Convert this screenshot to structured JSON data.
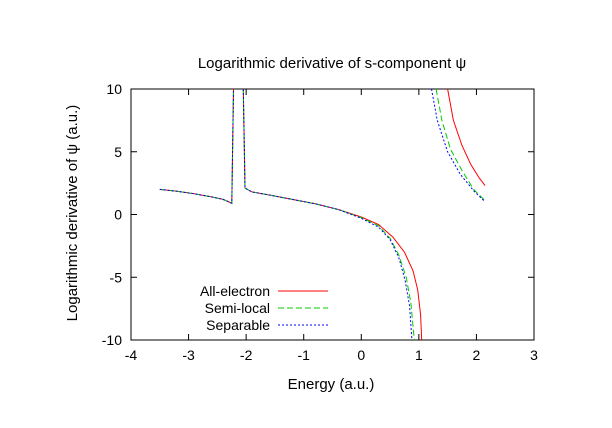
{
  "chart_data": {
    "type": "line",
    "title": "Logarithmic derivative of s-component ψ",
    "xlabel": "Energy (a.u.)",
    "ylabel": "Logarithmic derivative of ψ (a.u.)",
    "xlim": [
      -4,
      3
    ],
    "ylim": [
      -10,
      10
    ],
    "xticks": [
      -4,
      -3,
      -2,
      -1,
      0,
      1,
      2,
      3
    ],
    "yticks": [
      -10,
      -5,
      0,
      5,
      10
    ],
    "xtick_labels": [
      "-4",
      "-3",
      "-2",
      "-1",
      "0",
      "1",
      "2",
      "3"
    ],
    "ytick_labels": [
      "-10",
      "-5",
      "0",
      "5",
      "10"
    ],
    "grid": false,
    "legend_position": "bottom-left",
    "series": [
      {
        "name": "All-electron",
        "color": "#ff0000",
        "dash": "solid",
        "segments": [
          [
            [
              -3.5,
              2.0
            ],
            [
              -3.2,
              1.85
            ],
            [
              -2.9,
              1.65
            ],
            [
              -2.6,
              1.4
            ],
            [
              -2.4,
              1.2
            ],
            [
              -2.25,
              0.9
            ],
            [
              -2.22,
              10
            ]
          ],
          [
            [
              -2.05,
              10
            ],
            [
              -2.02,
              2.1
            ],
            [
              -1.9,
              1.8
            ],
            [
              -1.6,
              1.55
            ],
            [
              -1.2,
              1.2
            ],
            [
              -0.8,
              0.85
            ],
            [
              -0.4,
              0.4
            ],
            [
              0.0,
              -0.2
            ],
            [
              0.3,
              -0.8
            ],
            [
              0.55,
              -1.8
            ],
            [
              0.75,
              -3.0
            ],
            [
              0.9,
              -4.5
            ],
            [
              0.98,
              -6.0
            ],
            [
              1.03,
              -8.0
            ],
            [
              1.05,
              -10
            ]
          ],
          [
            [
              1.5,
              10
            ],
            [
              1.6,
              7.5
            ],
            [
              1.75,
              5.5
            ],
            [
              1.9,
              4.0
            ],
            [
              2.05,
              2.9
            ],
            [
              2.15,
              2.3
            ]
          ]
        ]
      },
      {
        "name": "Semi-local",
        "color": "#00cc00",
        "dash": "6,3",
        "segments": [
          [
            [
              -3.5,
              2.0
            ],
            [
              -3.2,
              1.85
            ],
            [
              -2.9,
              1.65
            ],
            [
              -2.6,
              1.4
            ],
            [
              -2.4,
              1.2
            ],
            [
              -2.25,
              0.9
            ],
            [
              -2.22,
              10
            ]
          ],
          [
            [
              -2.05,
              10
            ],
            [
              -2.02,
              2.1
            ],
            [
              -1.9,
              1.8
            ],
            [
              -1.6,
              1.55
            ],
            [
              -1.2,
              1.2
            ],
            [
              -0.8,
              0.85
            ],
            [
              -0.4,
              0.4
            ],
            [
              0.0,
              -0.25
            ],
            [
              0.3,
              -0.9
            ],
            [
              0.5,
              -1.9
            ],
            [
              0.65,
              -3.2
            ],
            [
              0.78,
              -5.0
            ],
            [
              0.86,
              -7.0
            ],
            [
              0.92,
              -10
            ]
          ],
          [
            [
              1.3,
              10
            ],
            [
              1.4,
              7.5
            ],
            [
              1.55,
              5.2
            ],
            [
              1.75,
              3.5
            ],
            [
              1.95,
              2.0
            ],
            [
              2.15,
              1.1
            ]
          ]
        ]
      },
      {
        "name": "Separable",
        "color": "#0000ff",
        "dash": "2,2",
        "segments": [
          [
            [
              -3.5,
              2.0
            ],
            [
              -3.2,
              1.85
            ],
            [
              -2.9,
              1.65
            ],
            [
              -2.6,
              1.4
            ],
            [
              -2.4,
              1.2
            ],
            [
              -2.25,
              0.9
            ],
            [
              -2.22,
              10
            ]
          ],
          [
            [
              -2.05,
              10
            ],
            [
              -2.02,
              2.1
            ],
            [
              -1.9,
              1.8
            ],
            [
              -1.6,
              1.55
            ],
            [
              -1.2,
              1.2
            ],
            [
              -0.8,
              0.85
            ],
            [
              -0.4,
              0.4
            ],
            [
              0.0,
              -0.3
            ],
            [
              0.3,
              -1.0
            ],
            [
              0.5,
              -2.0
            ],
            [
              0.65,
              -3.4
            ],
            [
              0.76,
              -5.2
            ],
            [
              0.84,
              -7.3
            ],
            [
              0.88,
              -10
            ]
          ],
          [
            [
              1.22,
              10
            ],
            [
              1.32,
              7.5
            ],
            [
              1.5,
              5.0
            ],
            [
              1.72,
              3.2
            ],
            [
              1.95,
              1.9
            ],
            [
              2.15,
              1.0
            ]
          ]
        ]
      }
    ]
  }
}
